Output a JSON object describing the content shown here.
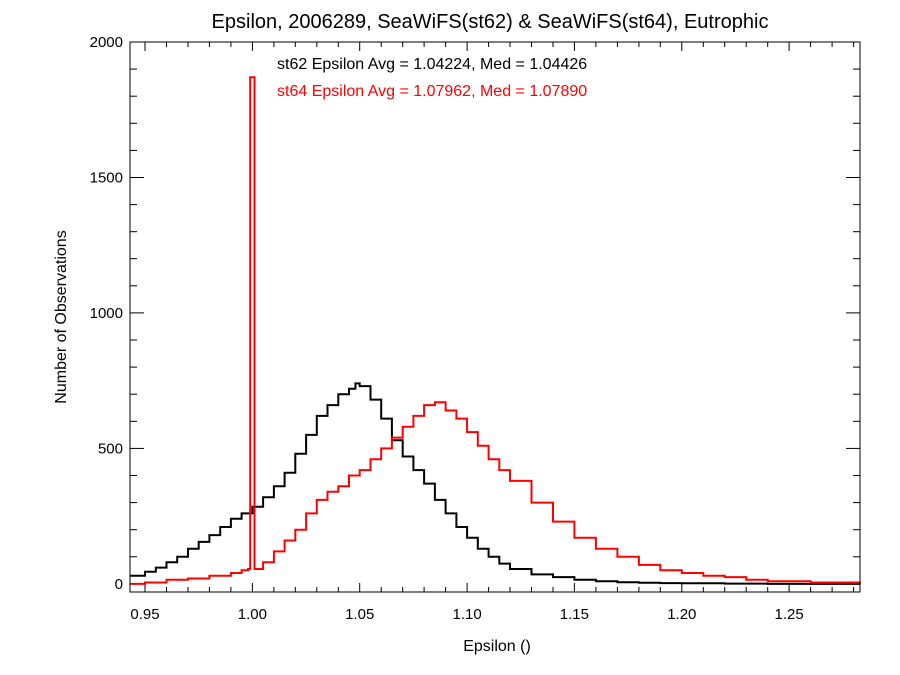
{
  "chart_data": {
    "type": "line",
    "title": "Epsilon, 2006289, SeaWiFS(st62) & SeaWiFS(st64), Eutrophic",
    "xlabel": "Epsilon ()",
    "ylabel": "Number of Observations",
    "xlim": [
      0.943,
      1.283
    ],
    "ylim": [
      -30,
      2000
    ],
    "xticks": [
      0.95,
      1.0,
      1.05,
      1.1,
      1.15,
      1.2,
      1.25
    ],
    "xtick_labels": [
      "0.95",
      "1.00",
      "1.05",
      "1.10",
      "1.15",
      "1.20",
      "1.25"
    ],
    "yticks": [
      0,
      500,
      1000,
      1500,
      2000
    ],
    "ytick_labels": [
      "0",
      "500",
      "1000",
      "1500",
      "2000"
    ],
    "grid": false,
    "style": "step",
    "annotations": [
      {
        "text": "st62 Epsilon Avg = 1.04224, Med = 1.04426",
        "color": "#000000"
      },
      {
        "text": "st64 Epsilon Avg = 1.07962, Med = 1.07890",
        "color": "#ff0000"
      }
    ],
    "series": [
      {
        "color": "#000000",
        "x": [
          0.943,
          0.95,
          0.955,
          0.96,
          0.965,
          0.97,
          0.975,
          0.98,
          0.985,
          0.99,
          0.995,
          1.0,
          1.005,
          1.01,
          1.015,
          1.02,
          1.025,
          1.03,
          1.035,
          1.04,
          1.045,
          1.048,
          1.05,
          1.055,
          1.06,
          1.065,
          1.07,
          1.075,
          1.08,
          1.085,
          1.09,
          1.095,
          1.1,
          1.105,
          1.11,
          1.115,
          1.12,
          1.13,
          1.14,
          1.15,
          1.16,
          1.17,
          1.18,
          1.19,
          1.2,
          1.22,
          1.24,
          1.26,
          1.283
        ],
        "y": [
          30,
          45,
          60,
          80,
          100,
          130,
          155,
          180,
          210,
          240,
          260,
          285,
          320,
          360,
          410,
          480,
          550,
          620,
          660,
          700,
          720,
          740,
          730,
          680,
          610,
          530,
          470,
          420,
          370,
          310,
          260,
          210,
          170,
          130,
          100,
          75,
          55,
          35,
          25,
          15,
          10,
          6,
          4,
          3,
          2,
          1,
          0,
          0,
          0
        ]
      },
      {
        "color": "#ff0000",
        "x": [
          0.943,
          0.95,
          0.96,
          0.97,
          0.98,
          0.99,
          0.995,
          0.998,
          0.999,
          1.0,
          1.001,
          1.005,
          1.01,
          1.015,
          1.02,
          1.025,
          1.03,
          1.035,
          1.04,
          1.045,
          1.05,
          1.055,
          1.06,
          1.065,
          1.07,
          1.075,
          1.08,
          1.085,
          1.09,
          1.095,
          1.1,
          1.105,
          1.11,
          1.115,
          1.12,
          1.13,
          1.14,
          1.15,
          1.16,
          1.17,
          1.18,
          1.19,
          1.2,
          1.21,
          1.22,
          1.23,
          1.24,
          1.26,
          1.283
        ],
        "y": [
          0,
          5,
          15,
          20,
          30,
          40,
          50,
          55,
          1870,
          1870,
          55,
          80,
          120,
          160,
          200,
          260,
          310,
          340,
          360,
          400,
          420,
          460,
          500,
          540,
          580,
          620,
          660,
          670,
          640,
          610,
          560,
          510,
          460,
          420,
          380,
          300,
          230,
          170,
          130,
          100,
          70,
          50,
          40,
          30,
          25,
          15,
          10,
          5,
          0
        ]
      }
    ]
  }
}
